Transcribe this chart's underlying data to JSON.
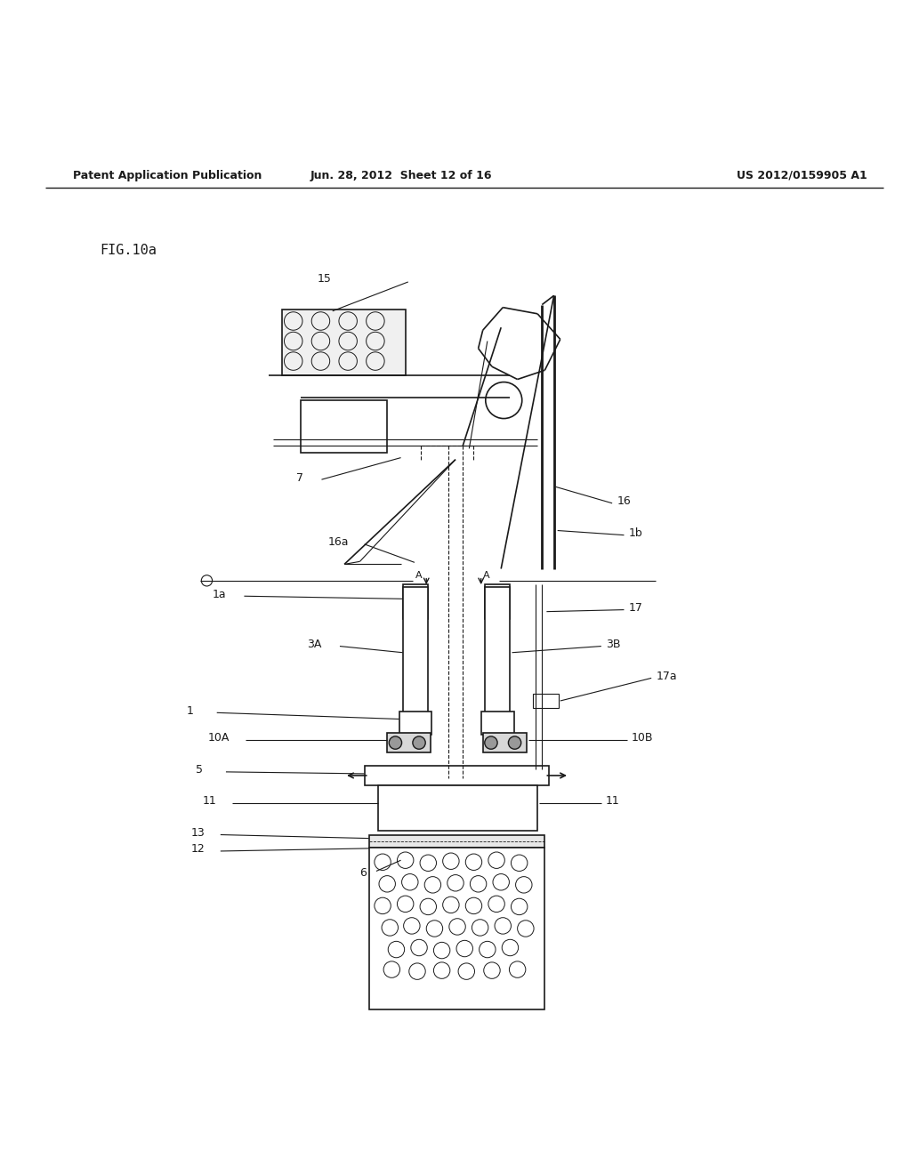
{
  "header_left": "Patent Application Publication",
  "header_mid": "Jun. 28, 2012  Sheet 12 of 16",
  "header_right": "US 2012/0159905 A1",
  "fig_label": "FIG.10a",
  "bg_color": "#ffffff",
  "line_color": "#1a1a1a"
}
